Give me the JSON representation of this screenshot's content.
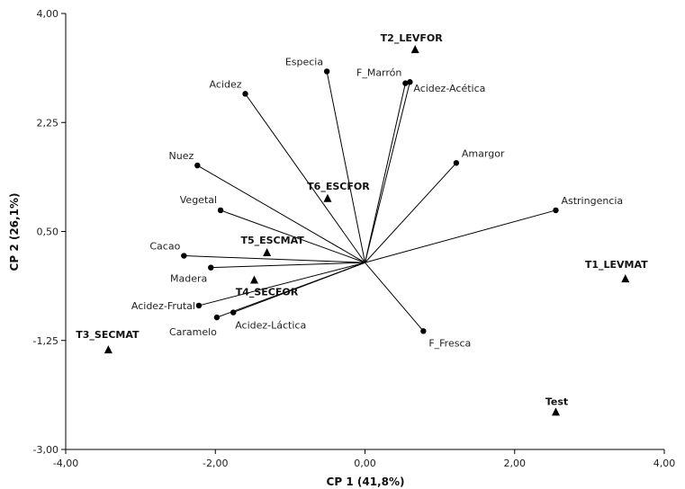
{
  "chart_data": {
    "type": "scatter",
    "subtype": "biplot",
    "title": "",
    "xlabel": "CP 1 (41,8%)",
    "ylabel": "CP 2 (26,1%)",
    "xlim": [
      -4.0,
      4.0
    ],
    "ylim": [
      -3.0,
      4.0
    ],
    "x_ticks": [
      -4.0,
      -2.0,
      0.0,
      2.0,
      4.0
    ],
    "x_tick_labels": [
      "-4,00",
      "-2,00",
      "0,00",
      "2,00",
      "4,00"
    ],
    "y_ticks": [
      -3.0,
      -1.25,
      0.5,
      2.25,
      4.0
    ],
    "y_tick_labels": [
      "-3,00",
      "-1,25",
      "0,50",
      "2,25",
      "4,00"
    ],
    "grid": false,
    "origin": [
      0,
      0
    ],
    "variables": [
      {
        "name": "Especia",
        "x": -0.51,
        "y": 3.07
      },
      {
        "name": "F_Marrón",
        "x": 0.54,
        "y": 2.88
      },
      {
        "name": "Acidez-Acética",
        "x": 0.6,
        "y": 2.9
      },
      {
        "name": "Acidez",
        "x": -1.6,
        "y": 2.71
      },
      {
        "name": "Amargor",
        "x": 1.22,
        "y": 1.6
      },
      {
        "name": "Astringencia",
        "x": 2.55,
        "y": 0.84
      },
      {
        "name": "Nuez",
        "x": -2.24,
        "y": 1.56
      },
      {
        "name": "Vegetal",
        "x": -1.93,
        "y": 0.84
      },
      {
        "name": "Cacao",
        "x": -2.42,
        "y": 0.11
      },
      {
        "name": "Madera",
        "x": -2.06,
        "y": -0.08
      },
      {
        "name": "Acidez-Frutal",
        "x": -2.22,
        "y": -0.69
      },
      {
        "name": "Acidez-Láctica",
        "x": -1.76,
        "y": -0.8
      },
      {
        "name": "Caramelo",
        "x": -1.98,
        "y": -0.88
      },
      {
        "name": "F_Fresca",
        "x": 0.78,
        "y": -1.1
      }
    ],
    "treatments": [
      {
        "name": "T2_LEVFOR",
        "x": 0.67,
        "y": 3.42
      },
      {
        "name": "T6_ESCFOR",
        "x": -0.5,
        "y": 1.03
      },
      {
        "name": "T5_ESCMAT",
        "x": -1.31,
        "y": 0.16
      },
      {
        "name": "T4_SECFOR",
        "x": -1.48,
        "y": -0.28
      },
      {
        "name": "T1_LEVMAT",
        "x": 3.48,
        "y": -0.26
      },
      {
        "name": "T3_SECMAT",
        "x": -3.43,
        "y": -1.4
      },
      {
        "name": "Test",
        "x": 2.55,
        "y": -2.4
      }
    ]
  }
}
